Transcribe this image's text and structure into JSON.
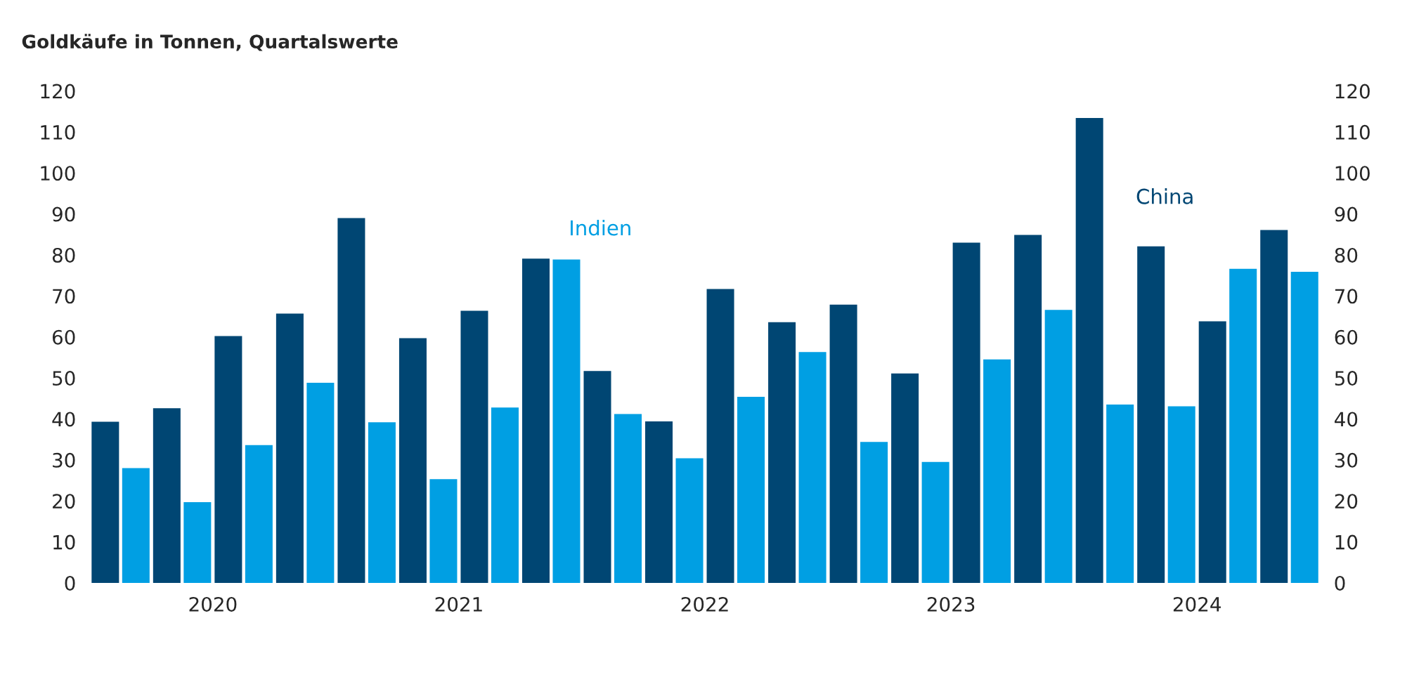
{
  "chart_data": {
    "type": "bar",
    "title": "Goldkäufe in Tonnen, Quartalswerte",
    "x": [
      2020.0,
      2020.25,
      2020.5,
      2020.75,
      2021.0,
      2021.25,
      2021.5,
      2021.75,
      2022.0,
      2022.25,
      2022.5,
      2022.75,
      2023.0,
      2023.25,
      2023.5,
      2023.75,
      2024.0,
      2024.25,
      2024.5,
      2024.75
    ],
    "xlim": [
      2019.875,
      2024.875
    ],
    "xticks": [
      {
        "value": 2020.375,
        "label": "2020"
      },
      {
        "value": 2021.375,
        "label": "2021"
      },
      {
        "value": 2022.375,
        "label": "2022"
      },
      {
        "value": 2023.375,
        "label": "2023"
      },
      {
        "value": 2024.375,
        "label": "2024"
      }
    ],
    "ylim": [
      0,
      120
    ],
    "yticks": [
      0,
      10,
      20,
      30,
      40,
      50,
      60,
      70,
      80,
      90,
      100,
      110,
      120
    ],
    "y2lim": [
      0,
      120
    ],
    "y2ticks": [
      0,
      10,
      20,
      30,
      40,
      50,
      60,
      70,
      80,
      90,
      100,
      110,
      120
    ],
    "grid": false,
    "legend": false,
    "series": [
      {
        "name": "China",
        "color": "#004673",
        "values": [
          39.3,
          42.6,
          60.2,
          65.7,
          89.0,
          59.7,
          66.4,
          79.1,
          51.7,
          39.4,
          71.7,
          63.6,
          67.9,
          51.1,
          83.0,
          84.9,
          113.4,
          82.1,
          63.8,
          86.1
        ]
      },
      {
        "name": "Indien",
        "color": "#009fe3",
        "values": [
          28.0,
          19.7,
          33.6,
          48.8,
          39.2,
          25.3,
          42.8,
          78.9,
          41.2,
          30.4,
          45.4,
          56.3,
          34.4,
          29.5,
          54.5,
          66.6,
          43.5,
          43.1,
          76.6,
          75.9
        ]
      }
    ]
  }
}
